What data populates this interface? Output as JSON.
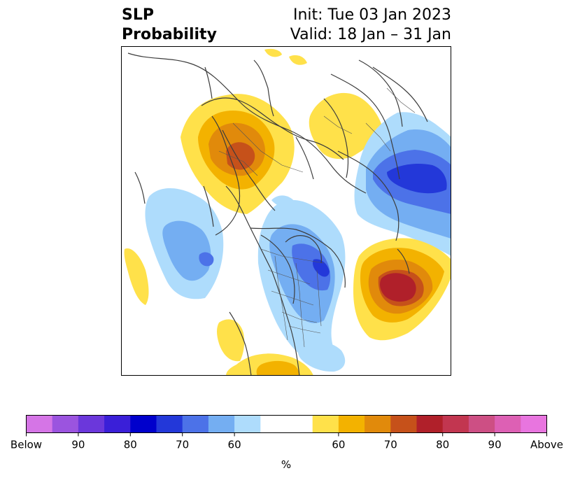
{
  "title": {
    "left_line1": "SLP",
    "left_line2": "Probability",
    "right_line1": "Init: Tue 03 Jan 2023",
    "right_line2": "Valid: 18 Jan – 31 Jan"
  },
  "colorbar": {
    "unit_label": "%",
    "tick_labels": [
      "Below",
      "90",
      "80",
      "70",
      "60",
      "60",
      "70",
      "80",
      "90",
      "Above"
    ],
    "colors": [
      "#d575e6",
      "#9b54df",
      "#6b37db",
      "#3a1fd8",
      "#0000cc",
      "#2338d9",
      "#4c72e8",
      "#74aef2",
      "#aedcfc",
      "#ffffff",
      "#ffffff",
      "#ffe14a",
      "#f3b200",
      "#e18a0b",
      "#c6511a",
      "#b0202a",
      "#c23650",
      "#cd4f84",
      "#dd60b4",
      "#e875df"
    ]
  },
  "map": {
    "projection": "north-polar-stereographic",
    "positive_color_scale": [
      "#ffe14a",
      "#f3b200",
      "#e18a0b",
      "#c6511a",
      "#b0202a"
    ],
    "negative_color_scale": [
      "#aedcfc",
      "#74aef2",
      "#4c72e8",
      "#2338d9"
    ]
  }
}
